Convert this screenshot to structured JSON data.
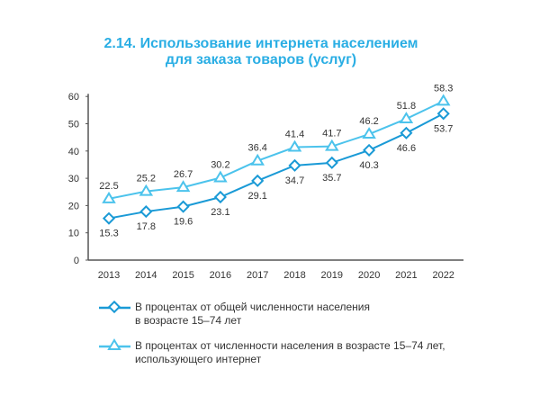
{
  "chart_data": {
    "type": "line",
    "title_line1": "2.14. Использование интернета населением",
    "title_line2": "для заказа товаров (услуг)",
    "xlabel": "",
    "ylabel": "",
    "categories": [
      "2013",
      "2014",
      "2015",
      "2016",
      "2017",
      "2018",
      "2019",
      "2020",
      "2021",
      "2022"
    ],
    "ylim": [
      0,
      60
    ],
    "yticks": [
      "0",
      "10",
      "20",
      "30",
      "40",
      "50",
      "60"
    ],
    "legend_placement": "bottom",
    "series": [
      {
        "name_line1": "В процентах от общей численности населения",
        "name_line2": "в возрасте 15–74 лет",
        "marker": "diamond",
        "color": "#1a9ad6",
        "values": [
          15.3,
          17.8,
          19.6,
          23.1,
          29.1,
          34.7,
          35.7,
          40.3,
          46.6,
          53.7
        ],
        "labels": [
          "15.3",
          "17.8",
          "19.6",
          "23.1",
          "29.1",
          "34.7",
          "35.7",
          "40.3",
          "46.6",
          "53.7"
        ]
      },
      {
        "name_line1": "В процентах от численности населения в возрасте 15–74 лет,",
        "name_line2": "использующего интернет",
        "marker": "triangle",
        "color": "#4cc3ec",
        "values": [
          22.5,
          25.2,
          26.7,
          30.2,
          36.4,
          41.4,
          41.7,
          46.2,
          51.8,
          58.3
        ],
        "labels": [
          "22.5",
          "25.2",
          "26.7",
          "30.2",
          "36.4",
          "41.4",
          "41.7",
          "46.2",
          "51.8",
          "58.3"
        ]
      }
    ]
  }
}
